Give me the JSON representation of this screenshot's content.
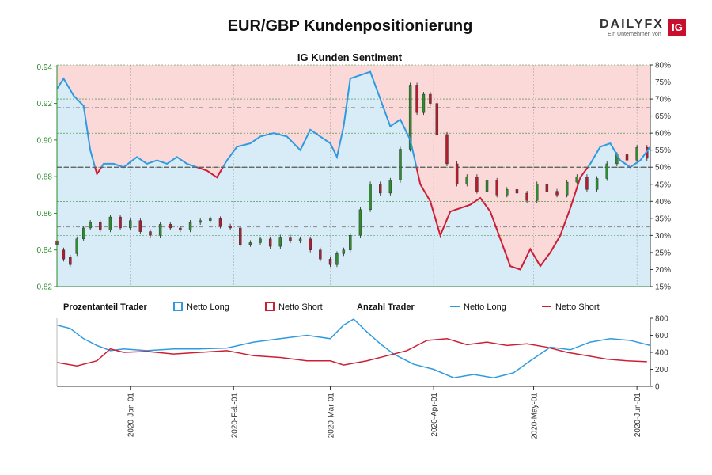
{
  "header": {
    "title": "EUR/GBP Kundenpositionierung"
  },
  "brand": {
    "wordmark": "DAILYFX",
    "tagline": "Ein Unternehmen von",
    "logo": "IG"
  },
  "chart_data": [
    {
      "type": "candlestick+area",
      "title": "IG Kunden Sentiment",
      "price_axis": {
        "ticks": [
          "0.82",
          "0.84",
          "0.86",
          "0.88",
          "0.90",
          "0.92",
          "0.94"
        ],
        "ylim": [
          0.82,
          0.941
        ]
      },
      "percent_axis": {
        "ticks": [
          "15%",
          "20%",
          "25%",
          "30%",
          "35%",
          "40%",
          "45%",
          "50%",
          "55%",
          "60%",
          "65%",
          "70%",
          "75%",
          "80%"
        ],
        "ylim": [
          15,
          80
        ]
      },
      "reference_lines_percent": [
        32.5,
        50,
        67.5
      ],
      "x_dates": [
        "2019-12-10",
        "2020-06-05"
      ],
      "x_ticks": [
        "2020-Jan-01",
        "2020-Feb-01",
        "2020-Mar-01",
        "2020-Apr-01",
        "2020-May-01",
        "2020-Jun-01"
      ],
      "percent_long_series": {
        "name": "Netto Long",
        "points": [
          [
            "2019-12-10",
            73
          ],
          [
            "2019-12-12",
            76
          ],
          [
            "2019-12-15",
            71
          ],
          [
            "2019-12-18",
            68
          ],
          [
            "2019-12-20",
            55
          ],
          [
            "2019-12-22",
            48
          ],
          [
            "2019-12-24",
            51
          ],
          [
            "2019-12-27",
            51
          ],
          [
            "2019-12-30",
            50
          ],
          [
            "2020-01-03",
            53
          ],
          [
            "2020-01-06",
            51
          ],
          [
            "2020-01-09",
            52
          ],
          [
            "2020-01-12",
            51
          ],
          [
            "2020-01-15",
            53
          ],
          [
            "2020-01-18",
            51
          ],
          [
            "2020-01-21",
            50
          ],
          [
            "2020-01-24",
            49
          ],
          [
            "2020-01-27",
            47
          ],
          [
            "2020-01-30",
            52
          ],
          [
            "2020-02-02",
            56
          ],
          [
            "2020-02-06",
            57
          ],
          [
            "2020-02-09",
            59
          ],
          [
            "2020-02-13",
            60
          ],
          [
            "2020-02-17",
            59
          ],
          [
            "2020-02-21",
            55
          ],
          [
            "2020-02-24",
            61
          ],
          [
            "2020-02-27",
            59
          ],
          [
            "2020-03-01",
            57
          ],
          [
            "2020-03-03",
            53
          ],
          [
            "2020-03-05",
            62
          ],
          [
            "2020-03-07",
            76
          ],
          [
            "2020-03-10",
            77
          ],
          [
            "2020-03-13",
            78
          ],
          [
            "2020-03-16",
            70
          ],
          [
            "2020-03-19",
            62
          ],
          [
            "2020-03-22",
            64
          ],
          [
            "2020-03-25",
            58
          ],
          [
            "2020-03-28",
            45
          ],
          [
            "2020-03-31",
            40
          ],
          [
            "2020-04-03",
            30
          ],
          [
            "2020-04-06",
            37
          ],
          [
            "2020-04-09",
            38
          ],
          [
            "2020-04-12",
            39
          ],
          [
            "2020-04-15",
            41
          ],
          [
            "2020-04-18",
            37
          ],
          [
            "2020-04-21",
            29
          ],
          [
            "2020-04-24",
            21
          ],
          [
            "2020-04-27",
            20
          ],
          [
            "2020-04-30",
            26
          ],
          [
            "2020-05-03",
            21
          ],
          [
            "2020-05-06",
            25
          ],
          [
            "2020-05-09",
            30
          ],
          [
            "2020-05-12",
            38
          ],
          [
            "2020-05-15",
            47
          ],
          [
            "2020-05-18",
            51
          ],
          [
            "2020-05-21",
            56
          ],
          [
            "2020-05-24",
            57
          ],
          [
            "2020-05-27",
            52
          ],
          [
            "2020-05-30",
            50
          ],
          [
            "2020-06-02",
            52
          ],
          [
            "2020-06-05",
            56
          ],
          [
            "2020-06-08",
            52
          ],
          [
            "2020-06-11",
            49
          ],
          [
            "2020-06-14",
            55
          ],
          [
            "2020-06-17",
            58
          ],
          [
            "2020-06-20",
            55
          ],
          [
            "2020-06-23",
            56
          ],
          [
            "2020-06-26",
            55
          ],
          [
            "2020-06-28",
            52
          ]
        ]
      },
      "candles": [
        [
          "2019-12-10",
          0.845,
          0.843
        ],
        [
          "2019-12-12",
          0.84,
          0.835
        ],
        [
          "2019-12-14",
          0.836,
          0.832
        ],
        [
          "2019-12-16",
          0.838,
          0.846
        ],
        [
          "2019-12-18",
          0.846,
          0.852
        ],
        [
          "2019-12-20",
          0.852,
          0.855
        ],
        [
          "2019-12-23",
          0.855,
          0.851
        ],
        [
          "2019-12-26",
          0.851,
          0.858
        ],
        [
          "2019-12-29",
          0.858,
          0.852
        ],
        [
          "2020-01-01",
          0.852,
          0.856
        ],
        [
          "2020-01-04",
          0.856,
          0.85
        ],
        [
          "2020-01-07",
          0.85,
          0.848
        ],
        [
          "2020-01-10",
          0.848,
          0.854
        ],
        [
          "2020-01-13",
          0.854,
          0.852
        ],
        [
          "2020-01-16",
          0.852,
          0.851
        ],
        [
          "2020-01-19",
          0.851,
          0.855
        ],
        [
          "2020-01-22",
          0.855,
          0.856
        ],
        [
          "2020-01-25",
          0.856,
          0.857
        ],
        [
          "2020-01-28",
          0.857,
          0.853
        ],
        [
          "2020-01-31",
          0.853,
          0.852
        ],
        [
          "2020-02-03",
          0.852,
          0.843
        ],
        [
          "2020-02-06",
          0.843,
          0.844
        ],
        [
          "2020-02-09",
          0.844,
          0.846
        ],
        [
          "2020-02-12",
          0.846,
          0.842
        ],
        [
          "2020-02-15",
          0.842,
          0.847
        ],
        [
          "2020-02-18",
          0.847,
          0.845
        ],
        [
          "2020-02-21",
          0.845,
          0.846
        ],
        [
          "2020-02-24",
          0.846,
          0.84
        ],
        [
          "2020-02-27",
          0.84,
          0.835
        ],
        [
          "2020-03-01",
          0.835,
          0.832
        ],
        [
          "2020-03-03",
          0.832,
          0.838
        ],
        [
          "2020-03-05",
          0.838,
          0.84
        ],
        [
          "2020-03-07",
          0.84,
          0.848
        ],
        [
          "2020-03-10",
          0.848,
          0.862
        ],
        [
          "2020-03-13",
          0.862,
          0.876
        ],
        [
          "2020-03-16",
          0.876,
          0.871
        ],
        [
          "2020-03-19",
          0.871,
          0.878
        ],
        [
          "2020-03-22",
          0.878,
          0.895
        ],
        [
          "2020-03-25",
          0.895,
          0.93
        ],
        [
          "2020-03-27",
          0.93,
          0.915
        ],
        [
          "2020-03-29",
          0.915,
          0.925
        ],
        [
          "2020-03-31",
          0.925,
          0.92
        ],
        [
          "2020-04-02",
          0.92,
          0.903
        ],
        [
          "2020-04-05",
          0.903,
          0.887
        ],
        [
          "2020-04-08",
          0.887,
          0.876
        ],
        [
          "2020-04-11",
          0.876,
          0.88
        ],
        [
          "2020-04-14",
          0.88,
          0.872
        ],
        [
          "2020-04-17",
          0.872,
          0.878
        ],
        [
          "2020-04-20",
          0.878,
          0.87
        ],
        [
          "2020-04-23",
          0.87,
          0.873
        ],
        [
          "2020-04-26",
          0.873,
          0.871
        ],
        [
          "2020-04-29",
          0.871,
          0.867
        ],
        [
          "2020-05-02",
          0.867,
          0.876
        ],
        [
          "2020-05-05",
          0.876,
          0.872
        ],
        [
          "2020-05-08",
          0.872,
          0.87
        ],
        [
          "2020-05-11",
          0.87,
          0.877
        ],
        [
          "2020-05-14",
          0.877,
          0.88
        ],
        [
          "2020-05-17",
          0.88,
          0.873
        ],
        [
          "2020-05-20",
          0.873,
          0.879
        ],
        [
          "2020-05-23",
          0.879,
          0.887
        ],
        [
          "2020-05-26",
          0.887,
          0.892
        ],
        [
          "2020-05-29",
          0.892,
          0.889
        ],
        [
          "2020-06-01",
          0.889,
          0.896
        ],
        [
          "2020-06-04",
          0.896,
          0.89
        ]
      ],
      "legend": {
        "left_title": "Prozentanteil Trader",
        "right_title": "Anzahl Trader",
        "long": "Netto Long",
        "short": "Netto Short",
        "long_color": "#2e9be0",
        "short_color": "#cc1f36"
      }
    },
    {
      "type": "line",
      "y_ticks": [
        "0",
        "200",
        "400",
        "600",
        "800"
      ],
      "ylim": [
        0,
        800
      ],
      "series": [
        {
          "name": "Netto Long",
          "points": [
            [
              "2019-12-10",
              720
            ],
            [
              "2019-12-14",
              680
            ],
            [
              "2019-12-18",
              560
            ],
            [
              "2019-12-22",
              480
            ],
            [
              "2019-12-26",
              420
            ],
            [
              "2019-12-30",
              440
            ],
            [
              "2020-01-06",
              420
            ],
            [
              "2020-01-14",
              440
            ],
            [
              "2020-01-22",
              440
            ],
            [
              "2020-01-30",
              450
            ],
            [
              "2020-02-07",
              520
            ],
            [
              "2020-02-15",
              560
            ],
            [
              "2020-02-23",
              600
            ],
            [
              "2020-03-01",
              560
            ],
            [
              "2020-03-05",
              720
            ],
            [
              "2020-03-08",
              790
            ],
            [
              "2020-03-12",
              640
            ],
            [
              "2020-03-16",
              500
            ],
            [
              "2020-03-20",
              380
            ],
            [
              "2020-03-26",
              260
            ],
            [
              "2020-04-01",
              200
            ],
            [
              "2020-04-07",
              100
            ],
            [
              "2020-04-13",
              140
            ],
            [
              "2020-04-19",
              100
            ],
            [
              "2020-04-25",
              160
            ],
            [
              "2020-04-30",
              300
            ],
            [
              "2020-05-06",
              460
            ],
            [
              "2020-05-12",
              430
            ],
            [
              "2020-05-18",
              520
            ],
            [
              "2020-05-24",
              560
            ],
            [
              "2020-05-30",
              540
            ],
            [
              "2020-06-05",
              480
            ],
            [
              "2020-06-11",
              380
            ],
            [
              "2020-06-17",
              360
            ],
            [
              "2020-06-23",
              390
            ],
            [
              "2020-06-28",
              430
            ]
          ]
        },
        {
          "name": "Netto Short",
          "points": [
            [
              "2019-12-10",
              280
            ],
            [
              "2019-12-16",
              240
            ],
            [
              "2019-12-22",
              300
            ],
            [
              "2019-12-26",
              440
            ],
            [
              "2019-12-30",
              400
            ],
            [
              "2020-01-06",
              410
            ],
            [
              "2020-01-14",
              380
            ],
            [
              "2020-01-22",
              400
            ],
            [
              "2020-01-30",
              420
            ],
            [
              "2020-02-07",
              360
            ],
            [
              "2020-02-15",
              340
            ],
            [
              "2020-02-23",
              300
            ],
            [
              "2020-03-01",
              300
            ],
            [
              "2020-03-05",
              250
            ],
            [
              "2020-03-12",
              300
            ],
            [
              "2020-03-18",
              360
            ],
            [
              "2020-03-24",
              420
            ],
            [
              "2020-03-30",
              540
            ],
            [
              "2020-04-05",
              560
            ],
            [
              "2020-04-11",
              490
            ],
            [
              "2020-04-17",
              520
            ],
            [
              "2020-04-23",
              480
            ],
            [
              "2020-04-29",
              500
            ],
            [
              "2020-05-05",
              460
            ],
            [
              "2020-05-11",
              400
            ],
            [
              "2020-05-17",
              360
            ],
            [
              "2020-05-23",
              320
            ],
            [
              "2020-05-29",
              300
            ],
            [
              "2020-06-04",
              290
            ],
            [
              "2020-06-10",
              470
            ],
            [
              "2020-06-16",
              510
            ],
            [
              "2020-06-22",
              590
            ],
            [
              "2020-06-26",
              500
            ],
            [
              "2020-06-28",
              480
            ]
          ]
        }
      ]
    }
  ]
}
